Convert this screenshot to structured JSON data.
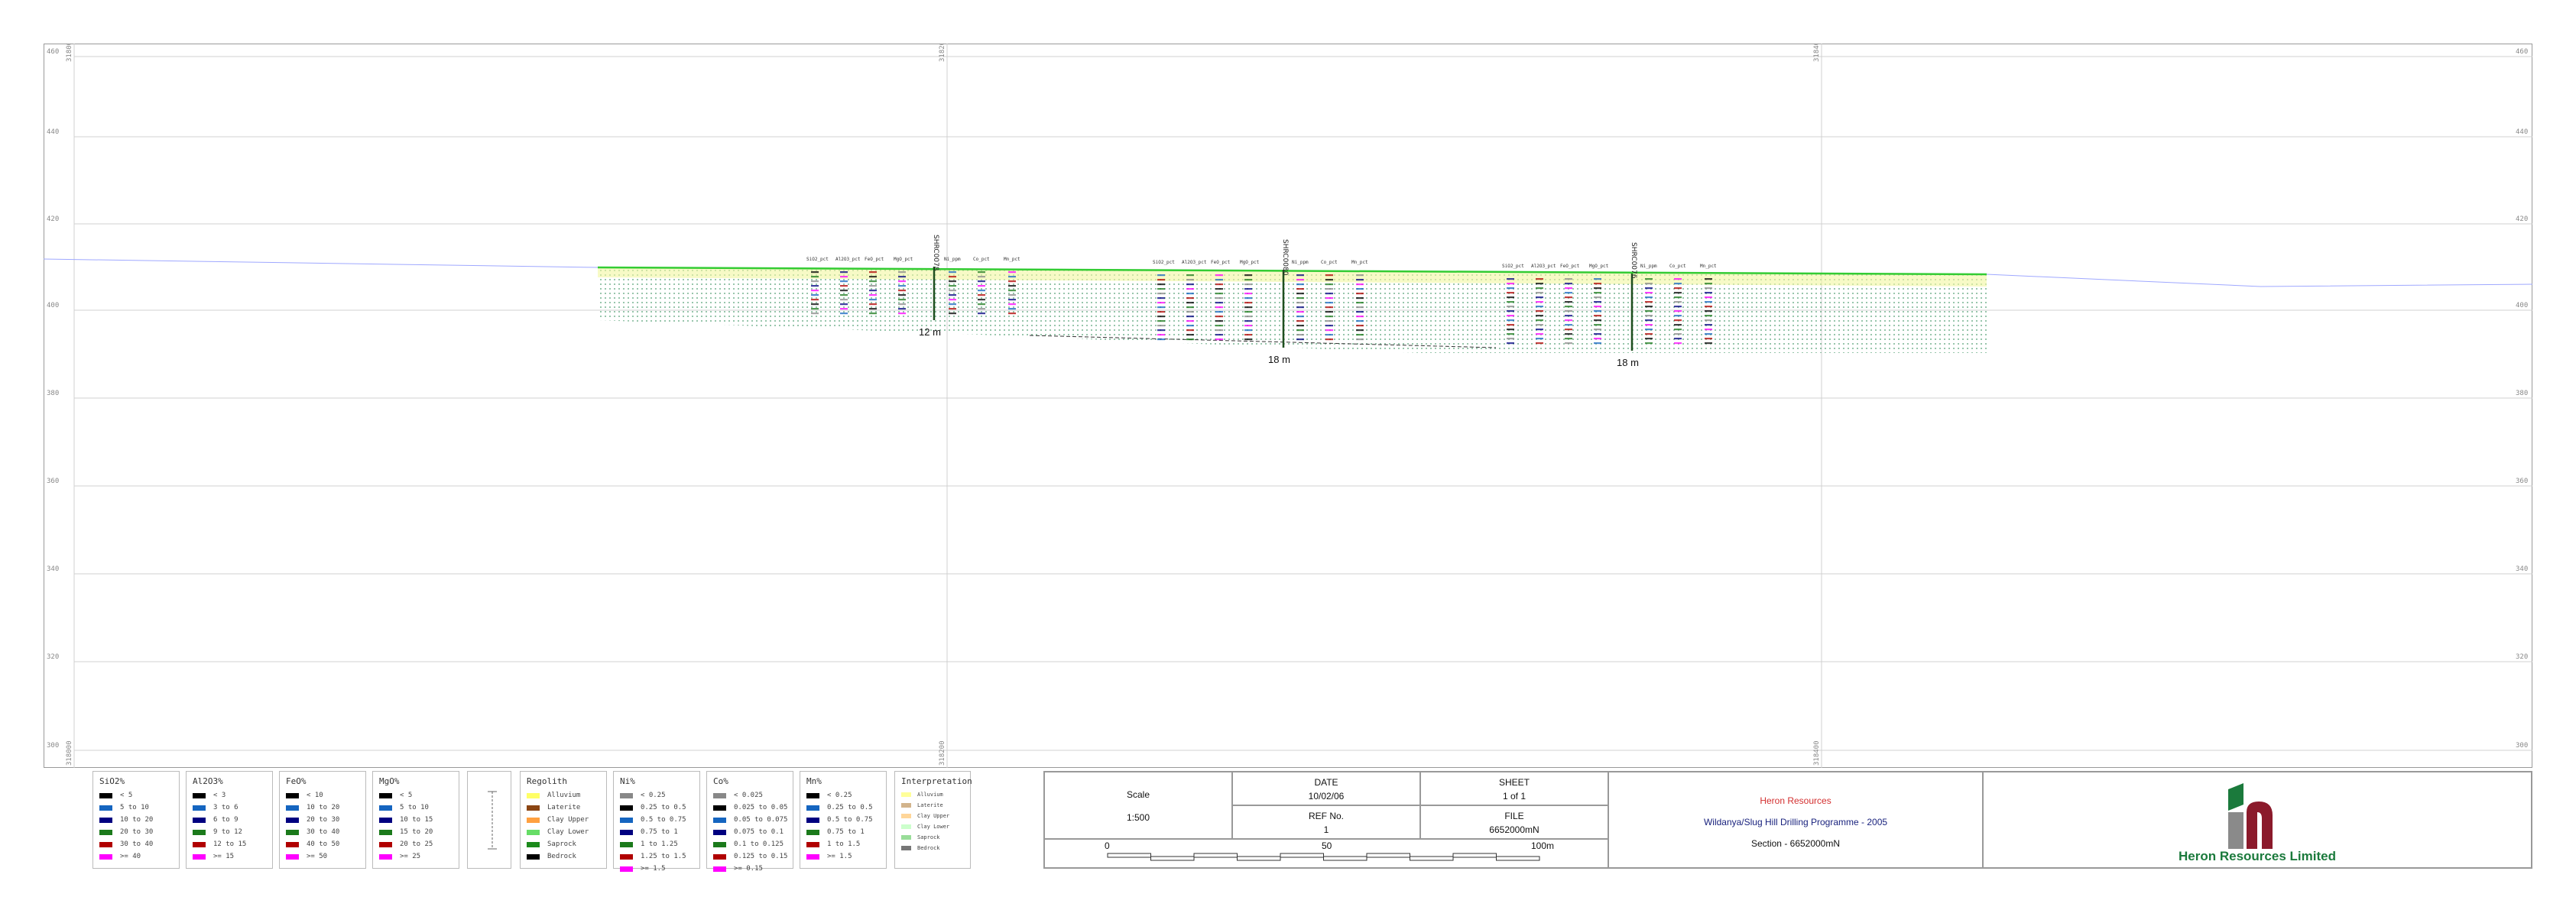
{
  "section": {
    "rl_labels": [
      "460",
      "440",
      "420",
      "400",
      "380",
      "360",
      "340",
      "320",
      "300"
    ],
    "easting_labels": [
      "318000",
      "318200",
      "318400"
    ],
    "holes": [
      {
        "id": "SHRC0078",
        "depth_label": "12 m"
      },
      {
        "id": "SHRC0080",
        "depth_label": "18 m"
      },
      {
        "id": "SHRC0076",
        "depth_label": "18 m"
      }
    ],
    "column_labels": [
      "SiO2_pct",
      "Al2O3_pct",
      "FeO_pct",
      "MgO_pct",
      "Ni_ppm",
      "Co_pct",
      "Mn_pct"
    ]
  },
  "legends": {
    "sio2": {
      "title": "SiO2%",
      "items": [
        {
          "label": "< 5",
          "color": "#000000"
        },
        {
          "label": "5 to 10",
          "color": "#1565c0"
        },
        {
          "label": "10 to 20",
          "color": "#000080"
        },
        {
          "label": "20 to 30",
          "color": "#1b7a1b"
        },
        {
          "label": "30 to 40",
          "color": "#b00000"
        },
        {
          "label": ">= 40",
          "color": "#ff00ff"
        }
      ]
    },
    "al2o3": {
      "title": "Al2O3%",
      "items": [
        {
          "label": "< 3",
          "color": "#000000"
        },
        {
          "label": "3 to 6",
          "color": "#1565c0"
        },
        {
          "label": "6 to 9",
          "color": "#000080"
        },
        {
          "label": "9 to 12",
          "color": "#1b7a1b"
        },
        {
          "label": "12 to 15",
          "color": "#b00000"
        },
        {
          "label": ">= 15",
          "color": "#ff00ff"
        }
      ]
    },
    "feo": {
      "title": "FeO%",
      "items": [
        {
          "label": "< 10",
          "color": "#000000"
        },
        {
          "label": "10 to 20",
          "color": "#1565c0"
        },
        {
          "label": "20 to 30",
          "color": "#000080"
        },
        {
          "label": "30 to 40",
          "color": "#1b7a1b"
        },
        {
          "label": "40 to 50",
          "color": "#b00000"
        },
        {
          "label": ">= 50",
          "color": "#ff00ff"
        }
      ]
    },
    "mgo": {
      "title": "MgO%",
      "items": [
        {
          "label": "< 5",
          "color": "#000000"
        },
        {
          "label": "5 to 10",
          "color": "#1565c0"
        },
        {
          "label": "10 to 15",
          "color": "#000080"
        },
        {
          "label": "15 to 20",
          "color": "#1b7a1b"
        },
        {
          "label": "20 to 25",
          "color": "#b00000"
        },
        {
          "label": ">= 25",
          "color": "#ff00ff"
        }
      ]
    },
    "regolith": {
      "title": "Regolith",
      "items": [
        {
          "label": "Alluvium",
          "color": "#ffff66"
        },
        {
          "label": "Laterite",
          "color": "#8b4513"
        },
        {
          "label": "Clay Upper",
          "color": "#ffa040"
        },
        {
          "label": "Clay Lower",
          "color": "#66dd66"
        },
        {
          "label": "Saprock",
          "color": "#1b8a1b"
        },
        {
          "label": "Bedrock",
          "color": "#000000"
        }
      ]
    },
    "ni": {
      "title": "Ni%",
      "items": [
        {
          "label": "< 0.25",
          "color": "#888888"
        },
        {
          "label": "0.25 to 0.5",
          "color": "#000000"
        },
        {
          "label": "0.5 to 0.75",
          "color": "#1565c0"
        },
        {
          "label": "0.75 to 1",
          "color": "#000080"
        },
        {
          "label": "1 to 1.25",
          "color": "#1b7a1b"
        },
        {
          "label": "1.25 to 1.5",
          "color": "#b00000"
        },
        {
          "label": ">= 1.5",
          "color": "#ff00ff"
        }
      ]
    },
    "co": {
      "title": "Co%",
      "items": [
        {
          "label": "< 0.025",
          "color": "#888888"
        },
        {
          "label": "0.025 to 0.05",
          "color": "#000000"
        },
        {
          "label": "0.05 to 0.075",
          "color": "#1565c0"
        },
        {
          "label": "0.075 to 0.1",
          "color": "#000080"
        },
        {
          "label": "0.1 to 0.125",
          "color": "#1b7a1b"
        },
        {
          "label": "0.125 to 0.15",
          "color": "#b00000"
        },
        {
          "label": ">= 0.15",
          "color": "#ff00ff"
        }
      ]
    },
    "mn": {
      "title": "Mn%",
      "items": [
        {
          "label": "< 0.25",
          "color": "#000000"
        },
        {
          "label": "0.25 to 0.5",
          "color": "#1565c0"
        },
        {
          "label": "0.5 to 0.75",
          "color": "#000080"
        },
        {
          "label": "0.75 to 1",
          "color": "#1b7a1b"
        },
        {
          "label": "1 to 1.5",
          "color": "#b00000"
        },
        {
          "label": ">= 1.5",
          "color": "#ff00ff"
        }
      ]
    },
    "interpretation": {
      "title": "Interpretation",
      "items": [
        {
          "label": "Alluvium",
          "color": "#ffff99"
        },
        {
          "label": "Laterite",
          "color": "#d2b48c"
        },
        {
          "label": "Clay Upper",
          "color": "#ffd699"
        },
        {
          "label": "Clay Lower",
          "color": "#ccffcc"
        },
        {
          "label": "Saprock",
          "color": "#99dd99"
        },
        {
          "label": "Bedrock",
          "color": "#777777"
        }
      ]
    }
  },
  "title_block": {
    "scale_label": "Scale",
    "scale_value": "1:500",
    "date_label": "DATE",
    "date_value": "10/02/06",
    "ref_label": "REF No.",
    "ref_value": "1",
    "sheet_label": "SHEET",
    "sheet_value": "1 of 1",
    "file_label": "FILE",
    "file_value": "6652000mN",
    "bar_ticks": [
      "0",
      "50",
      "100m"
    ],
    "company": "Heron Resources",
    "programme": "Wildanya/Slug Hill Drilling Programme - 2005",
    "section_name": "Section - 6652000mN",
    "logo_text": "Heron Resources Limited"
  },
  "colors": {
    "company_red": "#d32f2f",
    "programme_blue": "#1a237e",
    "logo_green": "#1b7a3c",
    "logo_maroon": "#8b1a2b"
  }
}
